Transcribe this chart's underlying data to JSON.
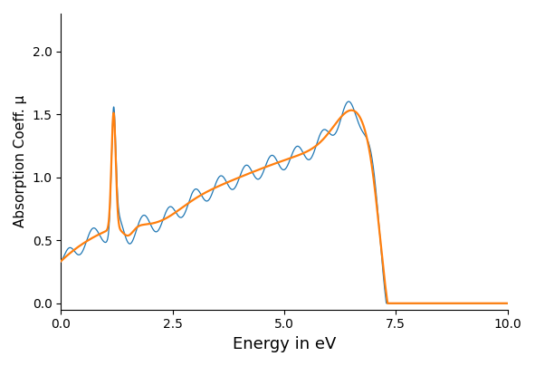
{
  "xlabel": "Energy in eV",
  "ylabel": "Absorption Coeff. μ",
  "xlim": [
    0.0,
    10.0
  ],
  "ylim": [
    -0.05,
    2.3
  ],
  "xticks": [
    0.0,
    2.5,
    5.0,
    7.5,
    10.0
  ],
  "yticks": [
    0.0,
    0.5,
    1.0,
    1.5,
    2.0
  ],
  "line_color_blue": "#1f77b4",
  "line_color_orange": "#ff7f0e",
  "figsize": [
    5.91,
    4.04
  ],
  "dpi": 100
}
